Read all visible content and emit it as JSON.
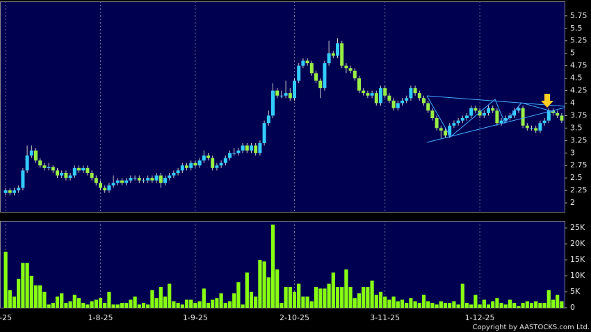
{
  "chart_data": {
    "type": "candlestick",
    "categories": [
      "-25",
      null,
      null,
      null,
      null,
      null,
      null,
      null,
      null,
      null,
      null,
      null,
      null,
      null,
      null,
      null,
      null,
      null,
      null,
      null,
      null,
      null,
      "1-8-25",
      null,
      null,
      null,
      null,
      null,
      null,
      null,
      null,
      null,
      null,
      null,
      null,
      null,
      null,
      null,
      null,
      null,
      null,
      null,
      null,
      null,
      "1-9-25",
      null,
      null,
      null,
      null,
      null,
      null,
      null,
      null,
      null,
      null,
      null,
      null,
      null,
      null,
      null,
      null,
      null,
      null,
      null,
      null,
      null,
      null,
      "2-10-25",
      null,
      null,
      null,
      null,
      null,
      null,
      null,
      null,
      null,
      null,
      null,
      null,
      null,
      null,
      null,
      null,
      null,
      null,
      null,
      null,
      "3-11-25",
      null,
      null,
      null,
      null,
      null,
      null,
      null,
      null,
      null,
      null,
      null,
      null,
      null,
      null,
      null,
      null,
      null,
      null,
      null,
      null,
      null,
      "1-12-25",
      null,
      null,
      null,
      null,
      null,
      null,
      null,
      null,
      null,
      null,
      null,
      null,
      null,
      null,
      null,
      null,
      null,
      null,
      null
    ],
    "open": [
      2.2,
      2.25,
      2.2,
      2.25,
      2.3,
      2.65,
      2.95,
      3.05,
      2.85,
      2.75,
      2.7,
      2.72,
      2.65,
      2.55,
      2.6,
      2.5,
      2.55,
      2.7,
      2.65,
      2.7,
      2.6,
      2.5,
      2.4,
      2.3,
      2.25,
      2.35,
      2.4,
      2.45,
      2.4,
      2.45,
      2.5,
      2.5,
      2.45,
      2.45,
      2.5,
      2.45,
      2.55,
      2.4,
      2.5,
      2.55,
      2.6,
      2.65,
      2.75,
      2.7,
      2.8,
      2.75,
      2.85,
      2.95,
      2.9,
      2.7,
      2.75,
      2.8,
      2.9,
      3.0,
      3.0,
      3.05,
      3.15,
      3.05,
      3.15,
      3.0,
      3.2,
      3.6,
      3.75,
      4.25,
      4.15,
      4.15,
      4.2,
      4.1,
      4.45,
      4.75,
      4.85,
      4.8,
      4.6,
      4.45,
      4.3,
      4.8,
      5.0,
      4.95,
      5.2,
      4.75,
      4.7,
      4.65,
      4.5,
      4.25,
      4.2,
      4.15,
      4.2,
      4.0,
      4.3,
      4.15,
      4.05,
      3.9,
      4.0,
      4.05,
      4.1,
      4.3,
      4.2,
      4.1,
      4.0,
      3.85,
      3.7,
      3.5,
      3.45,
      3.35,
      3.55,
      3.6,
      3.65,
      3.7,
      3.75,
      3.9,
      3.85,
      3.75,
      3.8,
      3.9,
      3.85,
      3.6,
      3.65,
      3.7,
      3.75,
      3.85,
      3.9,
      3.55,
      3.5,
      3.5,
      3.45,
      3.6,
      3.65,
      3.85,
      3.8,
      3.75
    ],
    "high": [
      2.3,
      2.3,
      2.3,
      2.35,
      2.7,
      3.15,
      3.15,
      3.1,
      2.9,
      2.8,
      2.8,
      2.75,
      2.7,
      2.65,
      2.65,
      2.6,
      2.75,
      2.75,
      2.75,
      2.75,
      2.65,
      2.55,
      2.45,
      2.35,
      2.4,
      2.55,
      2.5,
      2.5,
      2.5,
      2.55,
      2.55,
      2.55,
      2.5,
      2.55,
      2.55,
      2.6,
      2.6,
      2.55,
      2.6,
      2.65,
      2.7,
      2.8,
      2.8,
      2.85,
      2.85,
      2.9,
      3.05,
      3.0,
      2.95,
      2.8,
      2.85,
      2.95,
      3.05,
      3.1,
      3.1,
      3.2,
      3.2,
      3.2,
      3.2,
      3.25,
      3.65,
      3.85,
      4.4,
      4.3,
      4.25,
      4.45,
      4.3,
      4.5,
      4.8,
      4.9,
      4.9,
      4.85,
      4.65,
      4.5,
      4.85,
      5.25,
      5.05,
      5.3,
      5.25,
      4.8,
      4.75,
      4.7,
      4.55,
      4.3,
      4.25,
      4.25,
      4.25,
      4.35,
      4.35,
      4.2,
      4.1,
      4.05,
      4.1,
      4.15,
      4.35,
      4.35,
      4.25,
      4.15,
      4.05,
      3.9,
      3.75,
      3.55,
      3.5,
      3.6,
      3.65,
      3.7,
      3.75,
      3.8,
      3.95,
      3.95,
      3.9,
      3.85,
      3.95,
      3.95,
      3.9,
      3.7,
      3.75,
      3.8,
      3.9,
      3.95,
      3.95,
      3.6,
      3.55,
      3.55,
      3.65,
      3.7,
      3.9,
      3.9,
      3.85,
      3.8
    ],
    "low": [
      2.15,
      2.15,
      2.15,
      2.2,
      2.25,
      2.6,
      2.9,
      2.8,
      2.7,
      2.65,
      2.65,
      2.6,
      2.5,
      2.5,
      2.45,
      2.45,
      2.5,
      2.6,
      2.6,
      2.55,
      2.45,
      2.35,
      2.25,
      2.2,
      2.2,
      2.3,
      2.35,
      2.35,
      2.35,
      2.4,
      2.45,
      2.4,
      2.4,
      2.4,
      2.4,
      2.4,
      2.3,
      2.35,
      2.45,
      2.5,
      2.55,
      2.6,
      2.65,
      2.65,
      2.7,
      2.7,
      2.8,
      2.85,
      2.65,
      2.65,
      2.7,
      2.75,
      2.85,
      2.95,
      2.95,
      3.0,
      3.0,
      3.0,
      2.95,
      2.95,
      3.15,
      3.55,
      3.7,
      4.1,
      4.1,
      4.1,
      4.05,
      4.05,
      4.4,
      4.7,
      4.75,
      4.55,
      4.4,
      4.1,
      4.25,
      4.75,
      4.9,
      4.9,
      4.7,
      4.6,
      4.6,
      4.45,
      4.2,
      4.15,
      4.1,
      4.1,
      3.95,
      3.95,
      4.1,
      4.0,
      3.85,
      3.85,
      3.95,
      4.0,
      4.05,
      4.15,
      4.05,
      3.95,
      3.8,
      3.65,
      3.45,
      3.3,
      3.3,
      3.3,
      3.5,
      3.55,
      3.6,
      3.65,
      3.7,
      3.8,
      3.7,
      3.7,
      3.75,
      3.8,
      3.55,
      3.55,
      3.6,
      3.65,
      3.7,
      3.8,
      3.5,
      3.45,
      3.45,
      3.4,
      3.4,
      3.55,
      3.6,
      3.75,
      3.7,
      3.6
    ],
    "close": [
      2.25,
      2.2,
      2.25,
      2.3,
      2.65,
      2.95,
      3.05,
      2.85,
      2.75,
      2.7,
      2.72,
      2.65,
      2.55,
      2.6,
      2.5,
      2.55,
      2.7,
      2.65,
      2.7,
      2.6,
      2.5,
      2.4,
      2.3,
      2.25,
      2.35,
      2.4,
      2.45,
      2.4,
      2.45,
      2.5,
      2.5,
      2.45,
      2.45,
      2.5,
      2.45,
      2.55,
      2.4,
      2.5,
      2.55,
      2.6,
      2.65,
      2.75,
      2.7,
      2.8,
      2.75,
      2.85,
      2.95,
      2.9,
      2.7,
      2.75,
      2.8,
      2.9,
      3.0,
      3.0,
      3.05,
      3.15,
      3.05,
      3.15,
      3.0,
      3.2,
      3.6,
      3.75,
      4.25,
      4.15,
      4.15,
      4.2,
      4.1,
      4.45,
      4.75,
      4.85,
      4.8,
      4.6,
      4.45,
      4.3,
      4.8,
      5.0,
      4.95,
      5.2,
      4.75,
      4.7,
      4.65,
      4.5,
      4.25,
      4.2,
      4.15,
      4.2,
      4.0,
      4.3,
      4.15,
      4.05,
      3.9,
      4.0,
      4.05,
      4.1,
      4.3,
      4.2,
      4.1,
      4.0,
      3.85,
      3.7,
      3.5,
      3.45,
      3.35,
      3.55,
      3.6,
      3.65,
      3.7,
      3.75,
      3.9,
      3.85,
      3.75,
      3.8,
      3.9,
      3.85,
      3.6,
      3.65,
      3.7,
      3.75,
      3.85,
      3.9,
      3.55,
      3.5,
      3.5,
      3.45,
      3.6,
      3.65,
      3.85,
      3.8,
      3.75,
      3.65
    ],
    "volume": [
      17500,
      5500,
      3500,
      9000,
      14000,
      14000,
      10000,
      7000,
      7000,
      5000,
      1000,
      1500,
      3500,
      4500,
      1500,
      2000,
      4000,
      3000,
      1500,
      1000,
      2000,
      2500,
      3000,
      1500,
      5000,
      1000,
      1000,
      1500,
      1500,
      2500,
      3500,
      1000,
      1500,
      1000,
      5500,
      3000,
      6500,
      3500,
      7500,
      2000,
      1500,
      1000,
      2500,
      2500,
      1500,
      2000,
      6000,
      1500,
      2500,
      3000,
      4500,
      1500,
      2000,
      4500,
      8000,
      1000,
      11000,
      5000,
      3500,
      15000,
      14500,
      9500,
      26000,
      12000,
      1500,
      6500,
      6500,
      5000,
      7500,
      3500,
      3500,
      2000,
      6500,
      6000,
      6000,
      7500,
      11000,
      6500,
      6500,
      12000,
      6500,
      3000,
      4500,
      6500,
      6500,
      8500,
      4000,
      5000,
      3500,
      2500,
      3500,
      2000,
      2500,
      1500,
      3000,
      2000,
      1500,
      4000,
      2000,
      1500,
      1000,
      2000,
      1500,
      1500,
      2000,
      1000,
      7500,
      1500,
      1000,
      4000,
      1000,
      2500,
      1000,
      2000,
      3000,
      1500,
      1000,
      2500,
      1500,
      500,
      1500,
      2000,
      1500,
      2000,
      1500,
      1500,
      5500,
      2500,
      4000,
      2000
    ],
    "up_color": "#33ccff",
    "down_color": "#99ee44",
    "volume_color": "#88ff11",
    "ylim": [
      1.82,
      6.04
    ],
    "yticks": [
      2,
      2.25,
      2.5,
      2.75,
      3,
      3.25,
      3.5,
      3.75,
      4,
      4.25,
      4.5,
      4.75,
      5,
      5.25,
      5.5,
      5.75
    ],
    "volume_ylim": [
      0,
      27200
    ],
    "volume_yticks": [
      0,
      {
        "value": 5000,
        "label": "5K"
      },
      {
        "value": 10000,
        "label": "10K"
      },
      {
        "value": 15000,
        "label": "15K"
      },
      {
        "value": 20000,
        "label": "20K"
      },
      {
        "value": 25000,
        "label": "25K"
      }
    ],
    "copyright": "Copyright by AASTOCKS.com Ltd."
  }
}
